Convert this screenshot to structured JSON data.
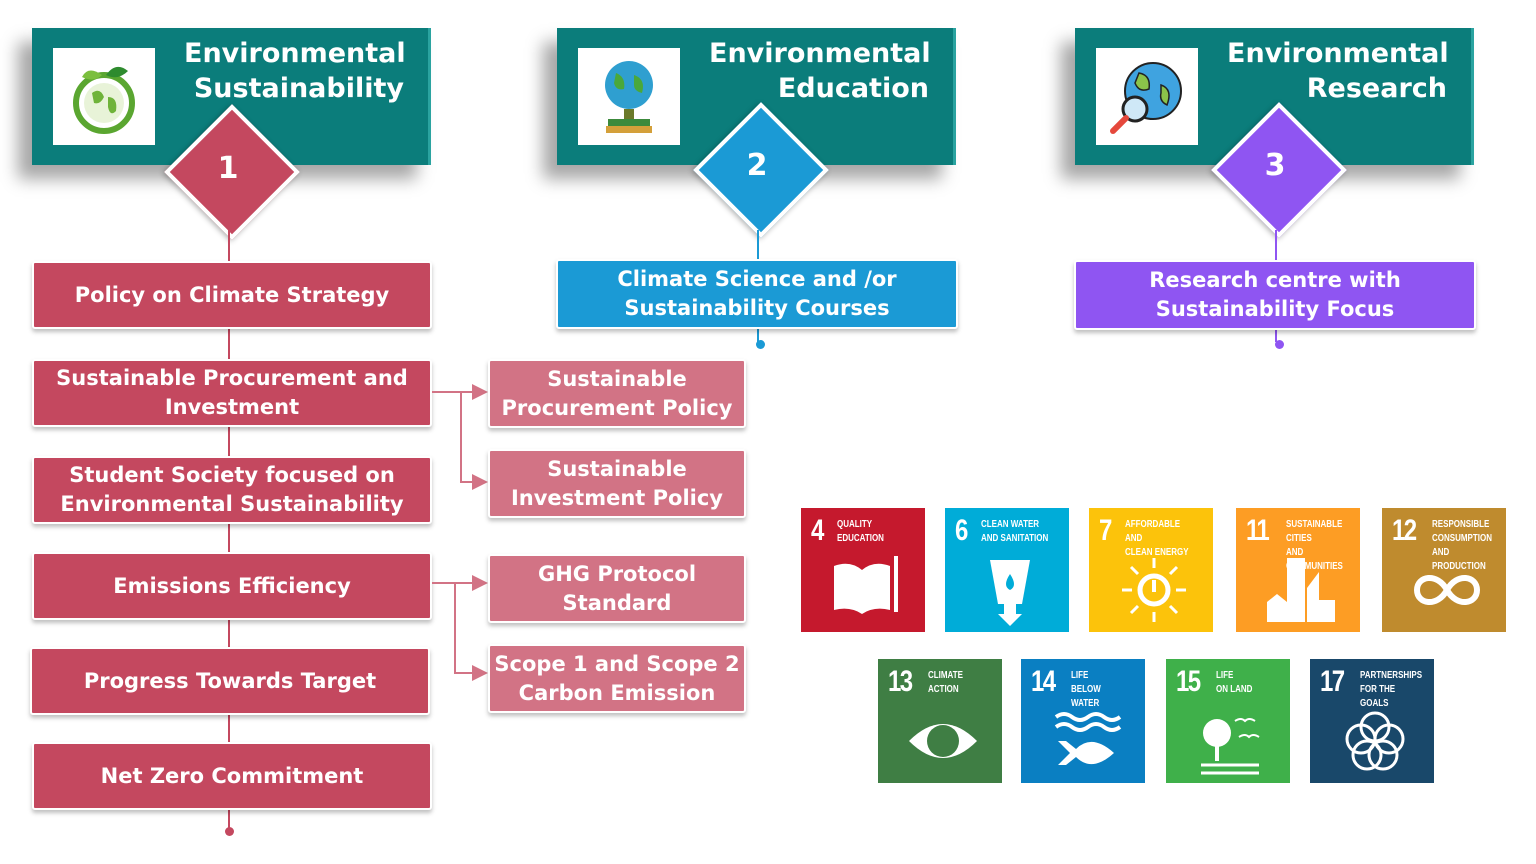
{
  "columns": [
    {
      "title": "Environmental Sustainability",
      "number": "1",
      "icon": "leaf-globe-icon",
      "color": "#c4485f",
      "items": [
        "Policy on Climate Strategy",
        "Sustainable Procurement and Investment",
        "Student Society focused on Environmental Sustainability",
        "Emissions Efficiency",
        "Progress Towards Target",
        "Net Zero Commitment"
      ]
    },
    {
      "title": "Environmental Education",
      "number": "2",
      "icon": "globe-on-books-icon",
      "color": "#1b9ad5",
      "items": [
        "Climate Science and /or Sustainability Courses"
      ]
    },
    {
      "title": "Environmental Research",
      "number": "3",
      "icon": "globe-magnifier-icon",
      "color": "#8f55f2",
      "items": [
        "Research centre with Sustainability Focus"
      ]
    }
  ],
  "sub_items": [
    "Sustainable Procurement Policy",
    "Sustainable Investment Policy",
    "GHG Protocol Standard",
    "Scope 1 and Scope 2 Carbon Emission"
  ],
  "sdgs": [
    {
      "number": "4",
      "label": "QUALITY\nEDUCATION",
      "color": "#c5192d",
      "icon": "book-icon"
    },
    {
      "number": "6",
      "label": "CLEAN WATER\nAND SANITATION",
      "color": "#00acd8",
      "icon": "water-glass-icon"
    },
    {
      "number": "7",
      "label": "AFFORDABLE AND\nCLEAN ENERGY",
      "color": "#fcc30b",
      "icon": "sun-power-icon"
    },
    {
      "number": "11",
      "label": "SUSTAINABLE CITIES\nAND COMMUNITIES",
      "color": "#fd9d24",
      "icon": "buildings-icon"
    },
    {
      "number": "12",
      "label": "RESPONSIBLE\nCONSUMPTION\nAND PRODUCTION",
      "color": "#bf8b2e",
      "icon": "infinity-icon"
    },
    {
      "number": "13",
      "label": "CLIMATE\nACTION",
      "color": "#3f7e44",
      "icon": "eye-globe-icon"
    },
    {
      "number": "14",
      "label": "LIFE\nBELOW WATER",
      "color": "#0a7fc2",
      "icon": "fish-icon"
    },
    {
      "number": "15",
      "label": "LIFE\nON LAND",
      "color": "#3fb04a",
      "icon": "tree-birds-icon"
    },
    {
      "number": "17",
      "label": "PARTNERSHIPS\nFOR THE GOALS",
      "color": "#19486a",
      "icon": "rings-icon"
    }
  ]
}
